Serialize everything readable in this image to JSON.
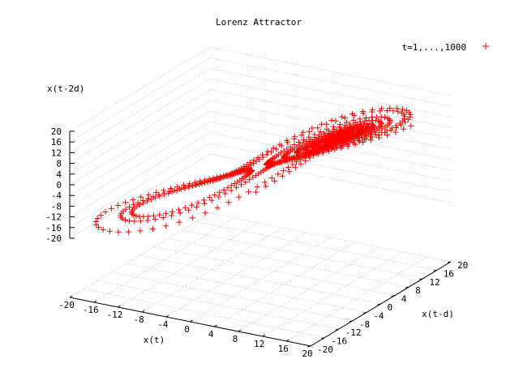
{
  "chart_data": {
    "type": "scatter",
    "title": "Lorenz Attractor",
    "xlabel": "x(t)",
    "ylabel": "x(t-d)",
    "zlabel": "x(t-2d)",
    "x_ticks": [
      "-20",
      "-16",
      "-12",
      "-8",
      "-4",
      "0",
      "4",
      "8",
      "12",
      "16",
      "20"
    ],
    "y_ticks": [
      "-20",
      "-16",
      "-12",
      "-8",
      "-4",
      "0",
      "4",
      "8",
      "12",
      "16",
      "20"
    ],
    "z_ticks": [
      "20",
      "16",
      "12",
      "8",
      "4",
      "0",
      "-4",
      "-8",
      "-12",
      "-16",
      "-20"
    ],
    "xlim": [
      -20,
      20
    ],
    "ylim": [
      -20,
      20
    ],
    "zlim": [
      -20,
      20
    ],
    "grid": true,
    "legend_position": "top-right",
    "series": [
      {
        "name": "t=1,...,1000",
        "marker": "+",
        "color": "#ff0000",
        "note_points": "1000-step delay embedding of the Lorenz x(t) series",
        "n_points": 1000
      }
    ]
  }
}
